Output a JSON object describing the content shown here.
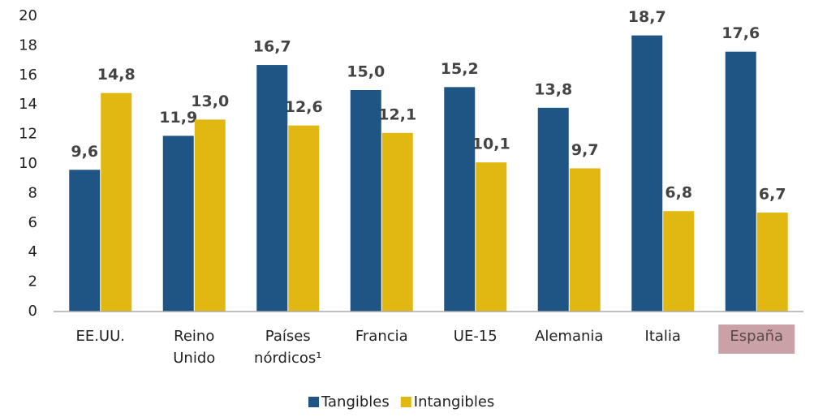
{
  "chart_data": {
    "type": "bar",
    "categories": [
      "EE.UU.",
      "Reino Unido",
      "Países nórdicos¹",
      "Francia",
      "UE-15",
      "Alemania",
      "Italia",
      "España"
    ],
    "series": [
      {
        "name": "Tangibles",
        "color": "#1f5584",
        "values": [
          9.6,
          11.9,
          16.7,
          15.0,
          15.2,
          13.8,
          18.7,
          17.6
        ],
        "value_labels": [
          "9,6",
          "11,9",
          "16,7",
          "15,0",
          "15,2",
          "13,8",
          "18,7",
          "17,6"
        ]
      },
      {
        "name": "Intangibles",
        "color": "#e1b711",
        "values": [
          14.8,
          13.0,
          12.6,
          12.1,
          10.1,
          9.7,
          6.8,
          6.7
        ],
        "value_labels": [
          "14,8",
          "13,0",
          "12,6",
          "12,1",
          "10,1",
          "9,7",
          "6,8",
          "6,7"
        ]
      }
    ],
    "ylim": [
      0,
      20
    ],
    "yticks": [
      0,
      2,
      4,
      6,
      8,
      10,
      12,
      14,
      16,
      18,
      20
    ],
    "grid": false,
    "legend": "bottom",
    "highlight_category": 7,
    "highlight_color": "#c9a1a7"
  }
}
